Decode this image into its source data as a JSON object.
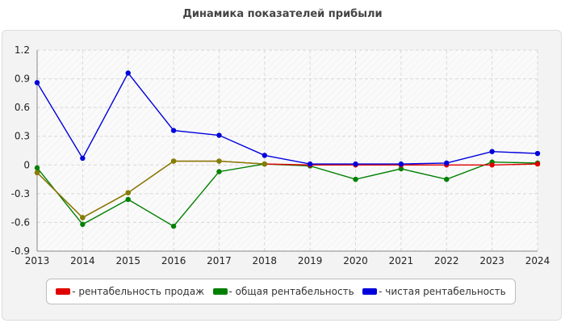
{
  "chart_data": {
    "type": "line",
    "title": "Динамика показателей прибыли",
    "xlabel": "",
    "ylabel": "",
    "x": [
      "2013",
      "2014",
      "2015",
      "2016",
      "2017",
      "2018",
      "2019",
      "2020",
      "2021",
      "2022",
      "2023",
      "2024"
    ],
    "ylim": [
      -0.9,
      1.2
    ],
    "yticks": [
      "1.2",
      "0.9",
      "0.6",
      "0.3",
      "0",
      "-0.3",
      "-0.6",
      "-0.9"
    ],
    "grid": true,
    "legend_position": "bottom",
    "series": [
      {
        "name": "- рентабельность продаж",
        "color": "#e00000",
        "values": [
          -0.08,
          -0.55,
          -0.29,
          0.04,
          0.04,
          0.01,
          0.0,
          0.0,
          0.0,
          0.0,
          0.0,
          0.01
        ]
      },
      {
        "name": "- общая рентабельность",
        "color": "#008000",
        "values": [
          -0.03,
          -0.62,
          -0.36,
          -0.64,
          -0.07,
          0.01,
          -0.01,
          -0.15,
          -0.04,
          -0.15,
          0.03,
          0.02
        ]
      },
      {
        "name": "- чистая рентабельность",
        "color": "#0000dd",
        "values": [
          0.86,
          0.07,
          0.96,
          0.36,
          0.31,
          0.1,
          0.01,
          0.01,
          0.01,
          0.02,
          0.14,
          0.12
        ]
      }
    ],
    "overlap_color": "#808000"
  }
}
